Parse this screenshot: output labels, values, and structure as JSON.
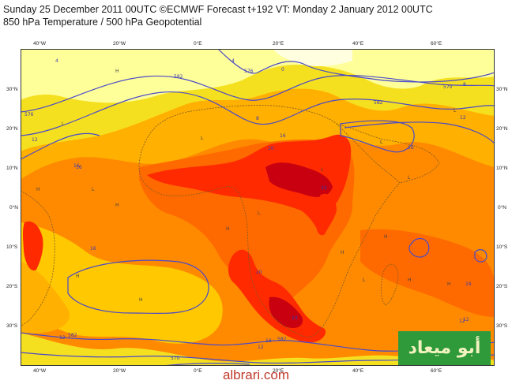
{
  "header": {
    "line1": "Sunday 25 December 2011 00UTC ©ECMWF Forecast t+192 VT: Monday 2 January 2012 00UTC",
    "line2": "850 hPa Temperature / 500 hPa Geopotential"
  },
  "axes": {
    "lon_top": [
      "40°W",
      "20°W",
      "0°E",
      "20°E",
      "40°E",
      "60°E"
    ],
    "lon_bottom": [
      "40°W",
      "20°W",
      "0°E",
      "20°E",
      "40°E",
      "60°E"
    ],
    "lat_left": [
      "30°N",
      "20°N",
      "10°N",
      "0°N",
      "10°S",
      "20°S",
      "30°S"
    ],
    "lat_right": [
      "30°N",
      "20°N",
      "10°N",
      "0°N",
      "10°S",
      "20°S",
      "30°S"
    ]
  },
  "colors": {
    "yellow_light": "#ffff9a",
    "yellow": "#f5e020",
    "orange_light": "#ffb000",
    "orange": "#ff8a00",
    "orange_dark": "#ff6a00",
    "red": "#ff2a00",
    "dark_red": "#c80010",
    "contour": "#4a4ac8"
  },
  "isotherm_labels": [
    "4",
    "0",
    "4",
    "8",
    "16",
    "12",
    "16",
    "20",
    "24",
    "16",
    "20",
    "24",
    "16",
    "12",
    "8",
    "12",
    "16",
    "16",
    "12",
    "12",
    "16",
    "12"
  ],
  "geopotential_labels": [
    "582",
    "576",
    "582",
    "570",
    "576",
    "582",
    "582",
    "570"
  ],
  "pressure_markers": [
    "H",
    "H",
    "L",
    "L",
    "H",
    "L",
    "H",
    "H",
    "L",
    "H",
    "L",
    "L",
    "H",
    "L",
    "H",
    "L",
    "H",
    "H",
    "L"
  ],
  "watermark": {
    "arabic": "أبو ميعاد",
    "site": "albrari.com"
  }
}
